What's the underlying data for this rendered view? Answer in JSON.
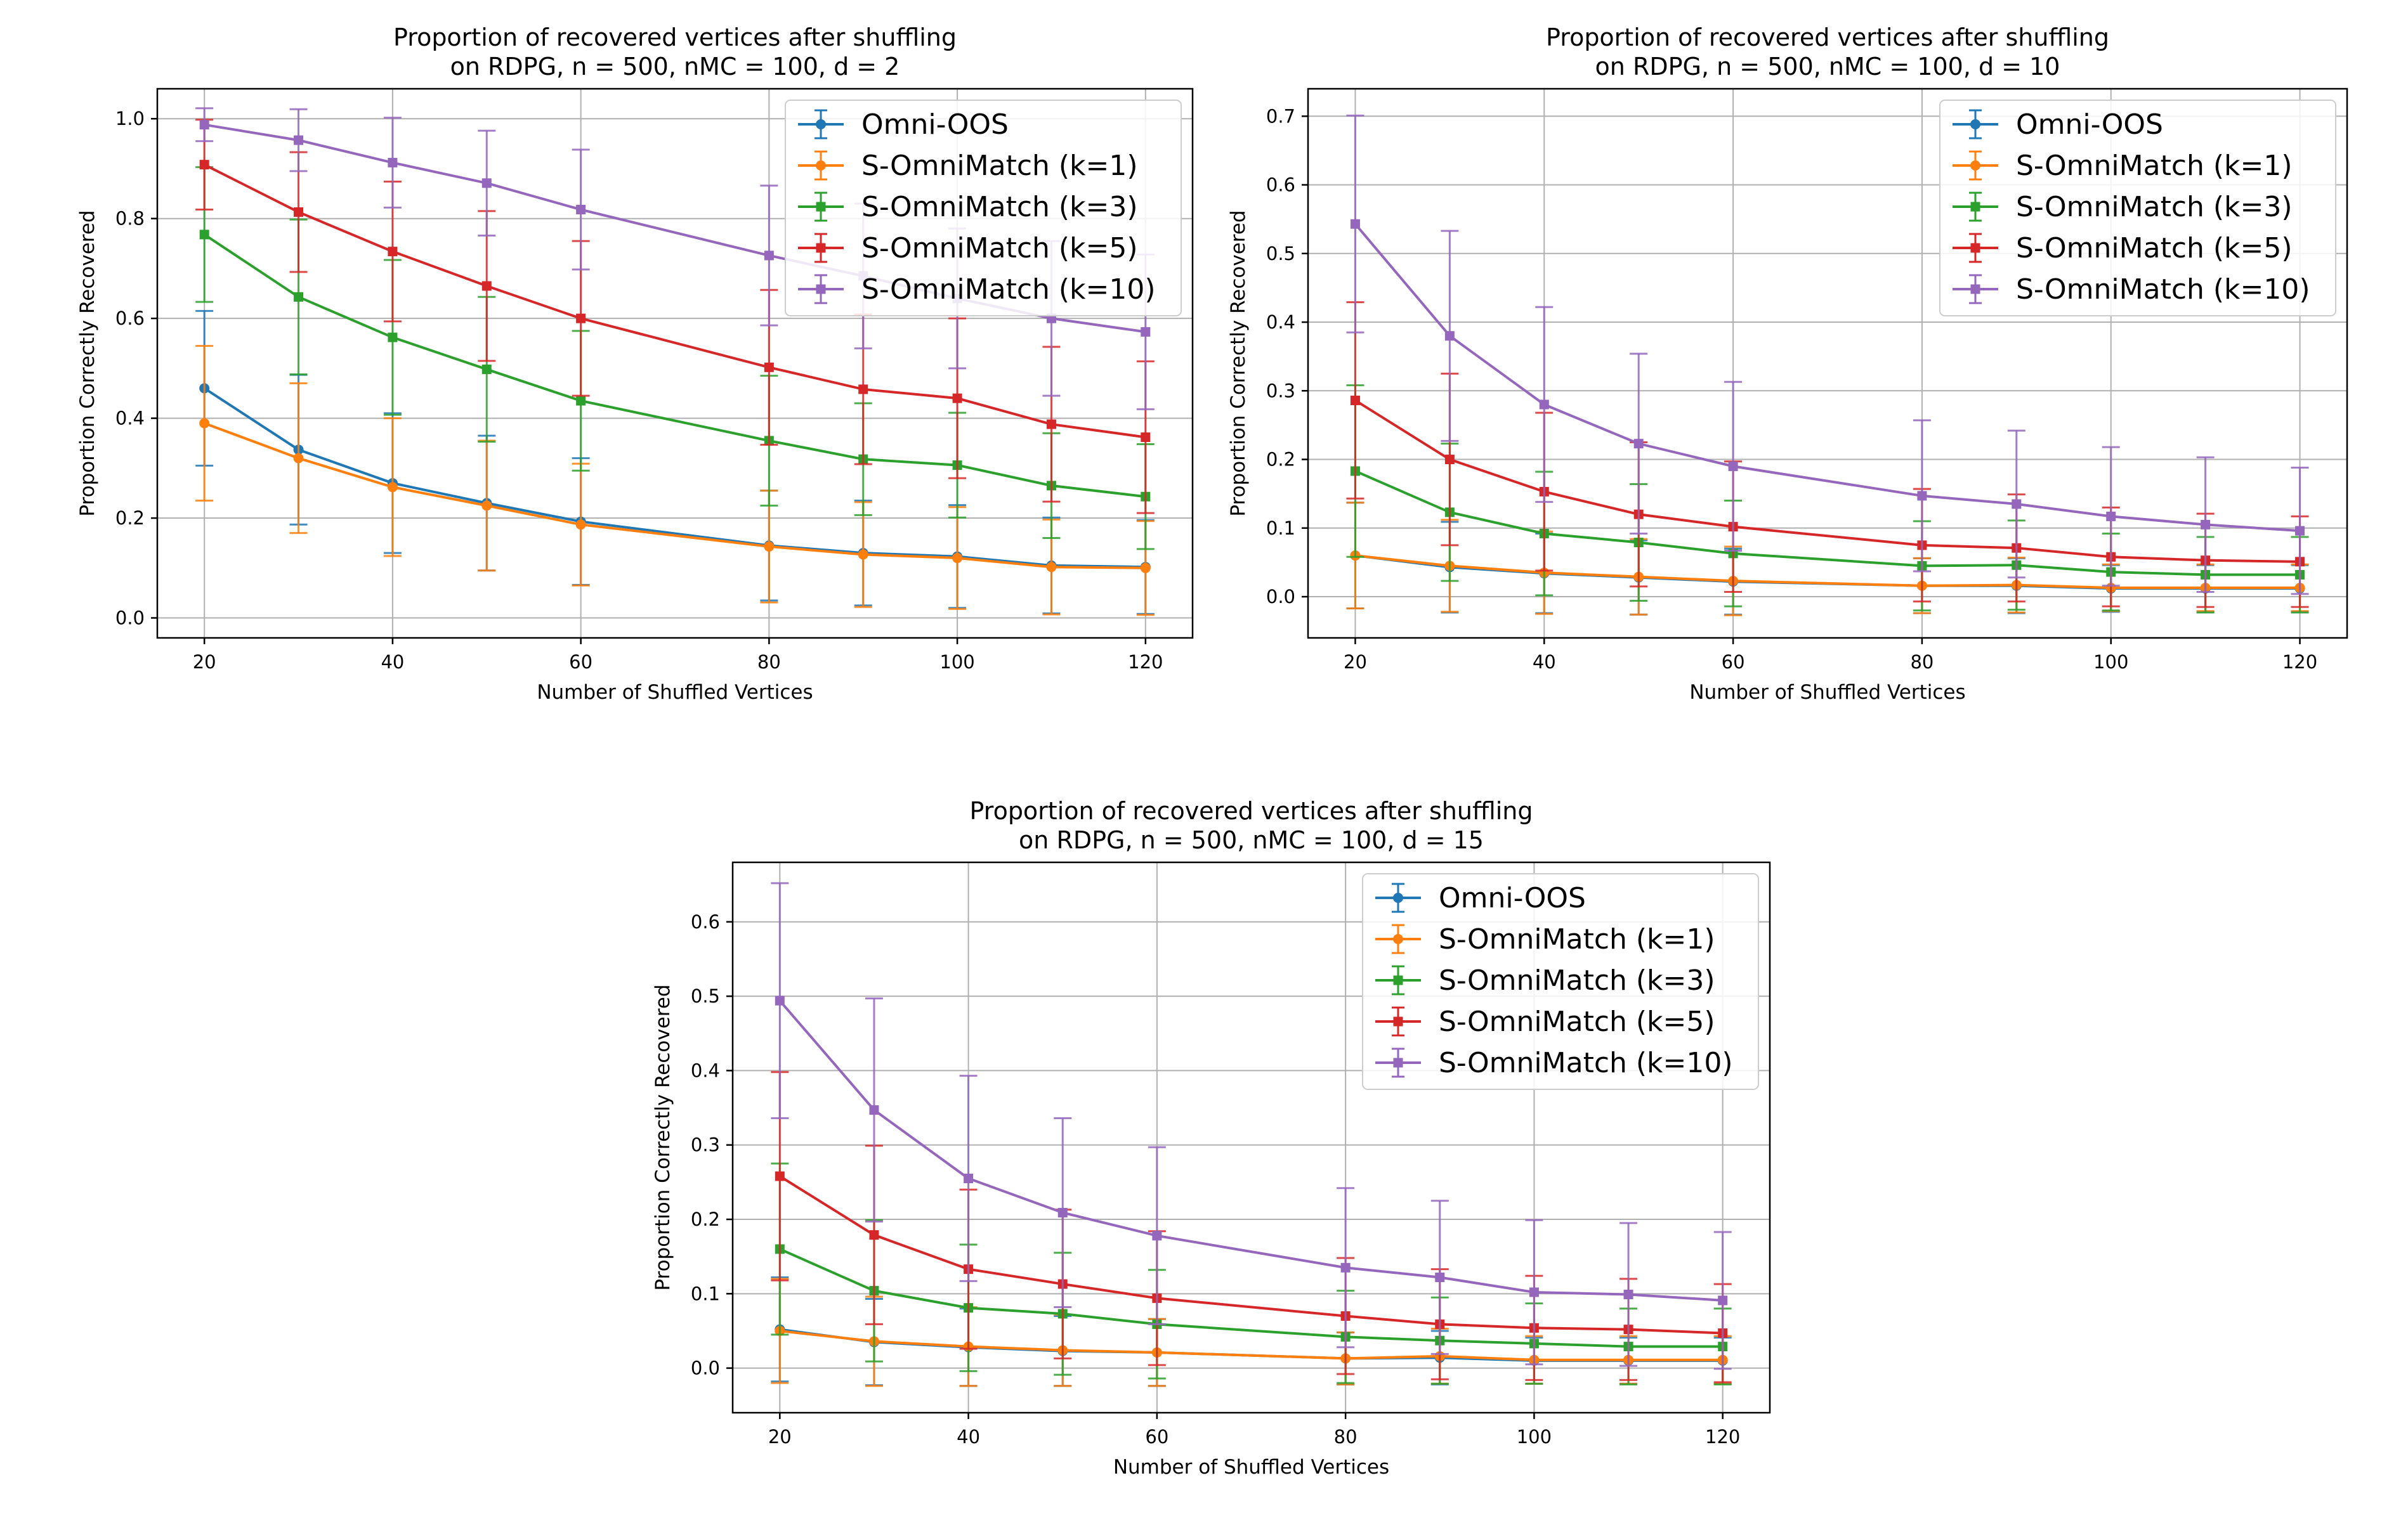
{
  "figure": {
    "description_free": true
  },
  "chart_data": [
    {
      "type": "line",
      "title": "Proportion of recovered vertices after shuffling",
      "subtitle": "on RDPG, n = 500, nMC = 100, d = 2",
      "xlabel": "Number of Shuffled Vertices",
      "ylabel": "Proportion Correctly Recovered",
      "xlim": [
        15,
        125
      ],
      "ylim": [
        -0.04,
        1.06
      ],
      "xticks": [
        20,
        40,
        60,
        80,
        100,
        120
      ],
      "xtick_labels": [
        "20",
        "40",
        "60",
        "80",
        "100",
        "120"
      ],
      "yticks": [
        0.0,
        0.2,
        0.4,
        0.6,
        0.8,
        1.0
      ],
      "ytick_labels": [
        "0.0",
        "0.2",
        "0.4",
        "0.6",
        "0.8",
        "1.0"
      ],
      "grid": true,
      "legend_position": "top-right",
      "x": [
        20,
        30,
        40,
        50,
        60,
        80,
        90,
        100,
        110,
        120
      ],
      "series": [
        {
          "name": "Omni-OOS",
          "color": "#1f77b4",
          "marker": "circle",
          "values": [
            0.46,
            0.337,
            0.27,
            0.23,
            0.193,
            0.145,
            0.13,
            0.123,
            0.105,
            0.102
          ],
          "errors": [
            0.155,
            0.15,
            0.14,
            0.135,
            0.127,
            0.11,
            0.105,
            0.103,
            0.096,
            0.094
          ]
        },
        {
          "name": "S-OmniMatch (k=1)",
          "color": "#ff7f0e",
          "marker": "circle",
          "values": [
            0.39,
            0.32,
            0.262,
            0.225,
            0.187,
            0.143,
            0.127,
            0.12,
            0.102,
            0.1
          ],
          "errors": [
            0.155,
            0.15,
            0.138,
            0.13,
            0.122,
            0.112,
            0.105,
            0.102,
            0.095,
            0.094
          ]
        },
        {
          "name": "S-OmniMatch (k=3)",
          "color": "#2ca02c",
          "marker": "square",
          "values": [
            0.768,
            0.643,
            0.562,
            0.498,
            0.435,
            0.355,
            0.318,
            0.306,
            0.265,
            0.243
          ],
          "errors": [
            0.135,
            0.155,
            0.155,
            0.145,
            0.14,
            0.13,
            0.112,
            0.105,
            0.105,
            0.105
          ]
        },
        {
          "name": "S-OmniMatch (k=5)",
          "color": "#d62728",
          "marker": "square",
          "values": [
            0.908,
            0.813,
            0.734,
            0.665,
            0.6,
            0.502,
            0.458,
            0.44,
            0.388,
            0.362
          ],
          "errors": [
            0.09,
            0.12,
            0.14,
            0.15,
            0.155,
            0.155,
            0.15,
            0.16,
            0.155,
            0.152
          ]
        },
        {
          "name": "S-OmniMatch (k=10)",
          "color": "#9467bd",
          "marker": "square",
          "values": [
            0.988,
            0.957,
            0.912,
            0.871,
            0.818,
            0.726,
            0.685,
            0.64,
            0.6,
            0.573
          ],
          "errors": [
            0.033,
            0.062,
            0.09,
            0.105,
            0.12,
            0.14,
            0.145,
            0.14,
            0.155,
            0.155
          ]
        }
      ]
    },
    {
      "type": "line",
      "title": "Proportion of recovered vertices after shuffling",
      "subtitle": "on RDPG, n = 500, nMC = 100, d = 10",
      "xlabel": "Number of Shuffled Vertices",
      "ylabel": "Proportion Correctly Recovered",
      "xlim": [
        15,
        125
      ],
      "ylim": [
        -0.06,
        0.74
      ],
      "xticks": [
        20,
        40,
        60,
        80,
        100,
        120
      ],
      "xtick_labels": [
        "20",
        "40",
        "60",
        "80",
        "100",
        "120"
      ],
      "yticks": [
        0.0,
        0.1,
        0.2,
        0.3,
        0.4,
        0.5,
        0.6,
        0.7
      ],
      "ytick_labels": [
        "0.0",
        "0.1",
        "0.2",
        "0.3",
        "0.4",
        "0.5",
        "0.6",
        "0.7"
      ],
      "grid": true,
      "legend_position": "top-right",
      "x": [
        20,
        30,
        40,
        50,
        60,
        80,
        90,
        100,
        110,
        120
      ],
      "series": [
        {
          "name": "Omni-OOS",
          "color": "#1f77b4",
          "marker": "circle",
          "values": [
            0.06,
            0.043,
            0.034,
            0.028,
            0.022,
            0.016,
            0.016,
            0.012,
            0.012,
            0.012
          ],
          "errors": [
            0.077,
            0.066,
            0.058,
            0.054,
            0.048,
            0.04,
            0.04,
            0.034,
            0.034,
            0.034
          ]
        },
        {
          "name": "S-OmniMatch (k=1)",
          "color": "#ff7f0e",
          "marker": "circle",
          "values": [
            0.06,
            0.045,
            0.035,
            0.029,
            0.023,
            0.016,
            0.017,
            0.013,
            0.013,
            0.013
          ],
          "errors": [
            0.077,
            0.067,
            0.06,
            0.055,
            0.05,
            0.04,
            0.04,
            0.034,
            0.034,
            0.034
          ]
        },
        {
          "name": "S-OmniMatch (k=3)",
          "color": "#2ca02c",
          "marker": "square",
          "values": [
            0.183,
            0.123,
            0.092,
            0.079,
            0.063,
            0.045,
            0.046,
            0.036,
            0.032,
            0.032
          ],
          "errors": [
            0.125,
            0.1,
            0.09,
            0.085,
            0.077,
            0.065,
            0.065,
            0.056,
            0.055,
            0.055
          ]
        },
        {
          "name": "S-OmniMatch (k=5)",
          "color": "#d62728",
          "marker": "square",
          "values": [
            0.286,
            0.2,
            0.153,
            0.12,
            0.102,
            0.075,
            0.071,
            0.058,
            0.053,
            0.051
          ],
          "errors": [
            0.143,
            0.125,
            0.115,
            0.105,
            0.095,
            0.082,
            0.078,
            0.072,
            0.068,
            0.066
          ]
        },
        {
          "name": "S-OmniMatch (k=10)",
          "color": "#9467bd",
          "marker": "square",
          "values": [
            0.543,
            0.38,
            0.28,
            0.223,
            0.19,
            0.147,
            0.135,
            0.117,
            0.105,
            0.096
          ],
          "errors": [
            0.158,
            0.153,
            0.142,
            0.131,
            0.123,
            0.11,
            0.107,
            0.101,
            0.098,
            0.092
          ]
        }
      ]
    },
    {
      "type": "line",
      "title": "Proportion of recovered vertices after shuffling",
      "subtitle": "on RDPG, n = 500, nMC = 100, d = 15",
      "xlabel": "Number of Shuffled Vertices",
      "ylabel": "Proportion Correctly Recovered",
      "xlim": [
        15,
        125
      ],
      "ylim": [
        -0.06,
        0.68
      ],
      "xticks": [
        20,
        40,
        60,
        80,
        100,
        120
      ],
      "xtick_labels": [
        "20",
        "40",
        "60",
        "80",
        "100",
        "120"
      ],
      "yticks": [
        0.0,
        0.1,
        0.2,
        0.3,
        0.4,
        0.5,
        0.6
      ],
      "ytick_labels": [
        "0.0",
        "0.1",
        "0.2",
        "0.3",
        "0.4",
        "0.5",
        "0.6"
      ],
      "grid": true,
      "legend_position": "top-right",
      "x": [
        20,
        30,
        40,
        50,
        60,
        80,
        90,
        100,
        110,
        120
      ],
      "series": [
        {
          "name": "Omni-OOS",
          "color": "#1f77b4",
          "marker": "circle",
          "values": [
            0.052,
            0.035,
            0.028,
            0.023,
            0.021,
            0.013,
            0.014,
            0.01,
            0.01,
            0.01
          ],
          "errors": [
            0.07,
            0.058,
            0.052,
            0.047,
            0.045,
            0.035,
            0.036,
            0.031,
            0.031,
            0.031
          ]
        },
        {
          "name": "S-OmniMatch (k=1)",
          "color": "#ff7f0e",
          "marker": "circle",
          "values": [
            0.05,
            0.036,
            0.029,
            0.024,
            0.021,
            0.013,
            0.016,
            0.011,
            0.011,
            0.011
          ],
          "errors": [
            0.07,
            0.06,
            0.053,
            0.048,
            0.045,
            0.035,
            0.037,
            0.032,
            0.032,
            0.032
          ]
        },
        {
          "name": "S-OmniMatch (k=3)",
          "color": "#2ca02c",
          "marker": "square",
          "values": [
            0.16,
            0.104,
            0.081,
            0.073,
            0.059,
            0.042,
            0.037,
            0.033,
            0.029,
            0.029
          ],
          "errors": [
            0.115,
            0.095,
            0.085,
            0.082,
            0.073,
            0.062,
            0.058,
            0.054,
            0.051,
            0.051
          ]
        },
        {
          "name": "S-OmniMatch (k=5)",
          "color": "#d62728",
          "marker": "square",
          "values": [
            0.258,
            0.179,
            0.133,
            0.113,
            0.094,
            0.07,
            0.059,
            0.054,
            0.052,
            0.047
          ],
          "errors": [
            0.14,
            0.12,
            0.107,
            0.1,
            0.09,
            0.078,
            0.074,
            0.07,
            0.068,
            0.066
          ]
        },
        {
          "name": "S-OmniMatch (k=10)",
          "color": "#9467bd",
          "marker": "square",
          "values": [
            0.494,
            0.347,
            0.255,
            0.209,
            0.178,
            0.135,
            0.122,
            0.102,
            0.099,
            0.091
          ],
          "errors": [
            0.158,
            0.15,
            0.138,
            0.127,
            0.119,
            0.107,
            0.103,
            0.097,
            0.096,
            0.092
          ]
        }
      ]
    }
  ]
}
